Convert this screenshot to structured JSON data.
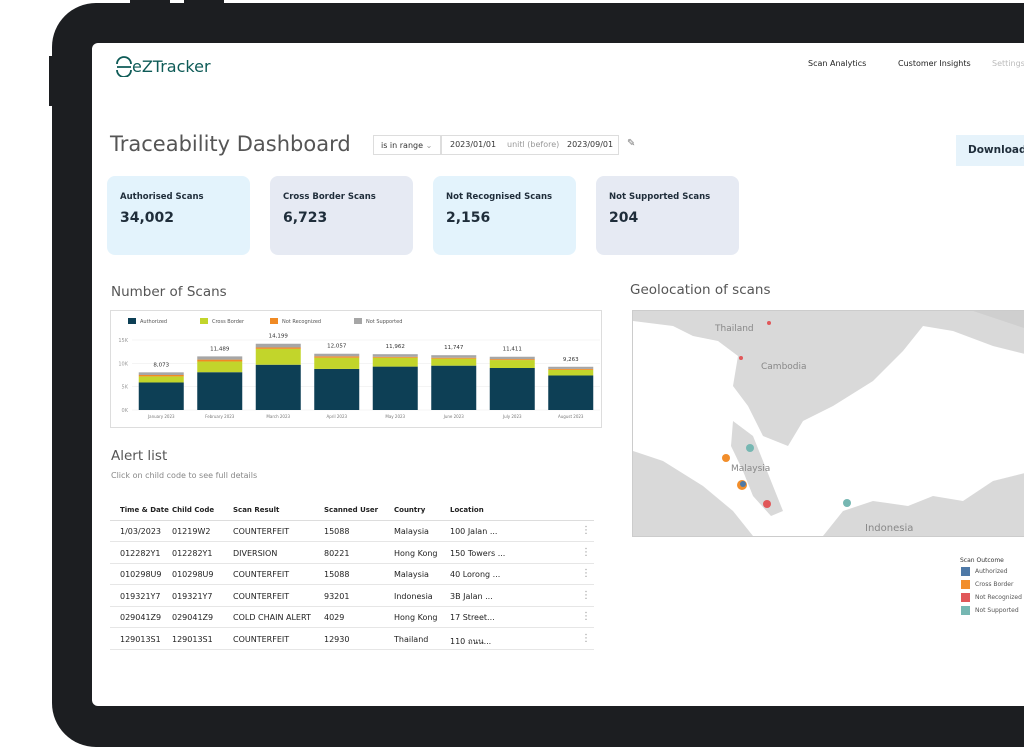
{
  "header": {
    "logo": "eZTracker",
    "nav": [
      "Scan Analytics",
      "Customer Insights",
      "Settings"
    ]
  },
  "title": "Traceability Dashboard",
  "filter": {
    "operator": "is in range",
    "from": "2023/01/01",
    "separator": "unitl (before)",
    "to": "2023/09/01"
  },
  "download": "Download",
  "kpis": [
    {
      "label": "Authorised Scans",
      "value": "34,002"
    },
    {
      "label": "Cross Border Scans",
      "value": "6,723"
    },
    {
      "label": "Not Recognised Scans",
      "value": "2,156"
    },
    {
      "label": "Not Supported Scans",
      "value": "204"
    }
  ],
  "chart_data": {
    "type": "bar",
    "stacked": true,
    "title": "Number of Scans",
    "categories": [
      "January 2023",
      "February 2023",
      "March 2023",
      "April 2023",
      "May 2023",
      "June 2023",
      "July 2023",
      "August 2023"
    ],
    "series": [
      {
        "name": "Authorized",
        "color": "#0d3f55",
        "values": [
          5900,
          8100,
          9700,
          8800,
          9300,
          9500,
          9000,
          7400
        ]
      },
      {
        "name": "Cross Border",
        "color": "#c2d52b",
        "values": [
          1300,
          2300,
          3400,
          2400,
          1900,
          1500,
          1700,
          1200
        ]
      },
      {
        "name": "Not Recognized",
        "color": "#f08a24",
        "values": [
          300,
          400,
          300,
          300,
          200,
          200,
          200,
          200
        ]
      },
      {
        "name": "Not Supported",
        "color": "#a6a6a6",
        "values": [
          573,
          689,
          799,
          557,
          562,
          547,
          511,
          463
        ]
      }
    ],
    "totals": [
      8073,
      11489,
      14199,
      12057,
      11962,
      11747,
      11411,
      9263
    ],
    "total_labels": [
      "8,073",
      "11,489",
      "14,199",
      "12,057",
      "11,962",
      "11,747",
      "11,411",
      "9,263"
    ],
    "ylim": [
      0,
      15000
    ],
    "yticks": [
      {
        "value": 0,
        "label": "0K"
      },
      {
        "value": 5000,
        "label": "5K"
      },
      {
        "value": 10000,
        "label": "10K"
      },
      {
        "value": 15000,
        "label": "15K"
      }
    ],
    "grid": true
  },
  "alerts": {
    "title": "Alert list",
    "subtitle": "Click on child code to see full details",
    "columns": [
      "Time & Date",
      "Child Code",
      "Scan Result",
      "Scanned User",
      "Country",
      "Location"
    ],
    "rows": [
      [
        "1/03/2023",
        "01219W2",
        "COUNTERFEIT",
        "15088",
        "Malaysia",
        "100 Jalan ..."
      ],
      [
        "012282Y1",
        "012282Y1",
        "DIVERSION",
        "80221",
        "Hong Kong",
        "150 Towers ..."
      ],
      [
        "010298U9",
        "010298U9",
        "COUNTERFEIT",
        "15088",
        "Malaysia",
        "40 Lorong ..."
      ],
      [
        "019321Y7",
        "019321Y7",
        "COUNTERFEIT",
        "93201",
        "Indonesia",
        "3B Jalan ..."
      ],
      [
        "029041Z9",
        "029041Z9",
        "COLD CHAIN ALERT",
        "4029",
        "Hong Kong",
        "17 Street..."
      ],
      [
        "129013S1",
        "129013S1",
        "COUNTERFEIT",
        "12930",
        "Thailand",
        "110 ถนน..."
      ]
    ]
  },
  "map": {
    "title": "Geolocation of scans",
    "places": [
      "Thailand",
      "Cambodia",
      "Malaysia",
      "Indonesia"
    ],
    "legend_title": "Scan Outcome",
    "legend": [
      {
        "name": "Authorized",
        "color": "#4e79a7"
      },
      {
        "name": "Cross Border",
        "color": "#f28e2b"
      },
      {
        "name": "Not Recognized",
        "color": "#e15759"
      },
      {
        "name": "Not Supported",
        "color": "#76b7b2"
      }
    ]
  }
}
